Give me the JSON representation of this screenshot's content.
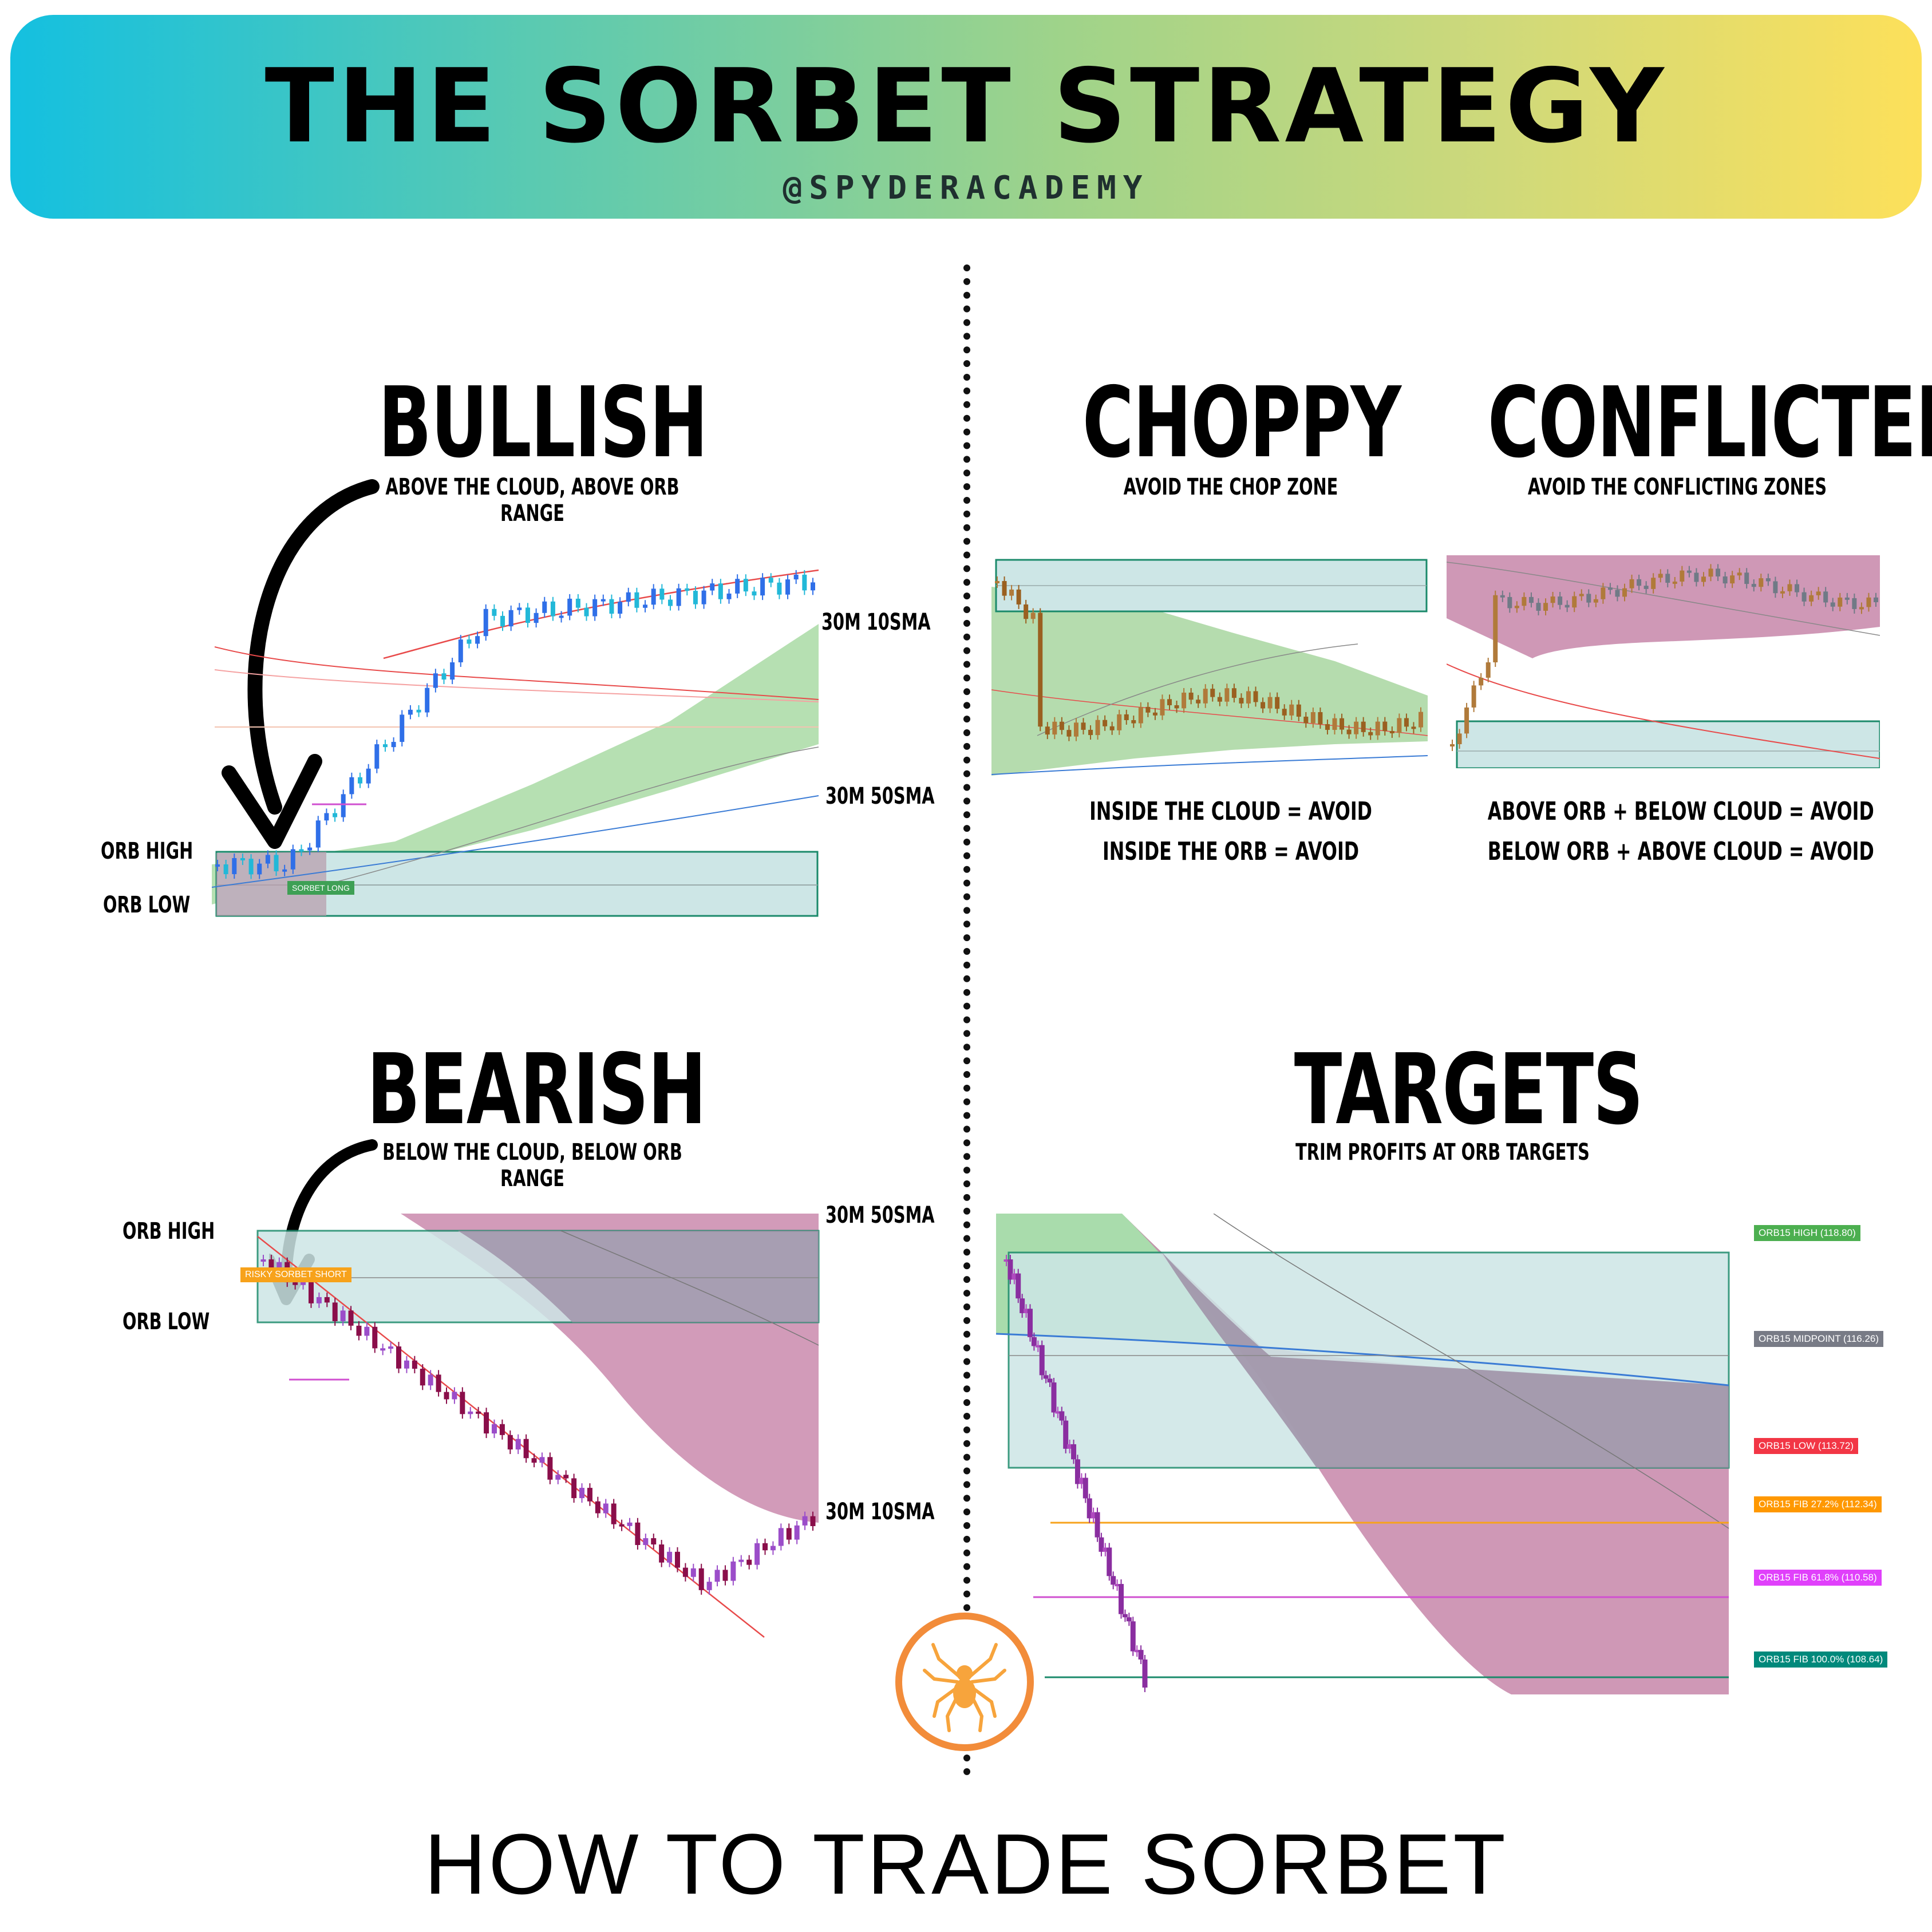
{
  "header": {
    "title": "THE SORBET STRATEGY",
    "handle": "@SPYDERACADEMY"
  },
  "bullish": {
    "title": "BULLISH",
    "subtitle": "ABOVE THE CLOUD, ABOVE ORB RANGE",
    "label_10sma": "30M 10SMA",
    "label_50sma": "30M 50SMA",
    "orb_high": "ORB HIGH",
    "orb_low": "ORB LOW",
    "signal_tag": "SORBET LONG"
  },
  "bearish": {
    "title": "BEARISH",
    "subtitle": "BELOW THE CLOUD, BELOW ORB RANGE",
    "label_50sma": "30M 50SMA",
    "label_10sma": "30M 10SMA",
    "orb_high": "ORB HIGH",
    "orb_low": "ORB LOW",
    "signal_tag": "RISKY SORBET SHORT"
  },
  "choppy": {
    "title": "CHOPPY",
    "subtitle": "AVOID THE CHOP ZONE",
    "rule1": "INSIDE THE CLOUD = AVOID",
    "rule2": "INSIDE THE ORB = AVOID"
  },
  "conflicted": {
    "title": "CONFLICTED",
    "subtitle": "AVOID THE CONFLICTING ZONES",
    "rule1": "ABOVE ORB + BELOW CLOUD = AVOID",
    "rule2": "BELOW ORB + ABOVE CLOUD = AVOID"
  },
  "targets": {
    "title": "TARGETS",
    "subtitle": "TRIM PROFITS AT ORB TARGETS",
    "levels": [
      {
        "label": "ORB15 HIGH (118.80)",
        "color": "#4caf50"
      },
      {
        "label": "ORB15 MIDPOINT (116.26)",
        "color": "#787b86"
      },
      {
        "label": "ORB15 LOW (113.72)",
        "color": "#f23645"
      },
      {
        "label": "ORB15 FIB 27.2% (112.34)",
        "color": "#ff9800"
      },
      {
        "label": "ORB15 FIB 61.8% (110.58)",
        "color": "#e040fb"
      },
      {
        "label": "ORB15 FIB 100.0% (108.64)",
        "color": "#00897b"
      }
    ]
  },
  "logo": {
    "icon": "spider-icon"
  },
  "footer": {
    "text": "HOW TO TRADE SORBET"
  }
}
